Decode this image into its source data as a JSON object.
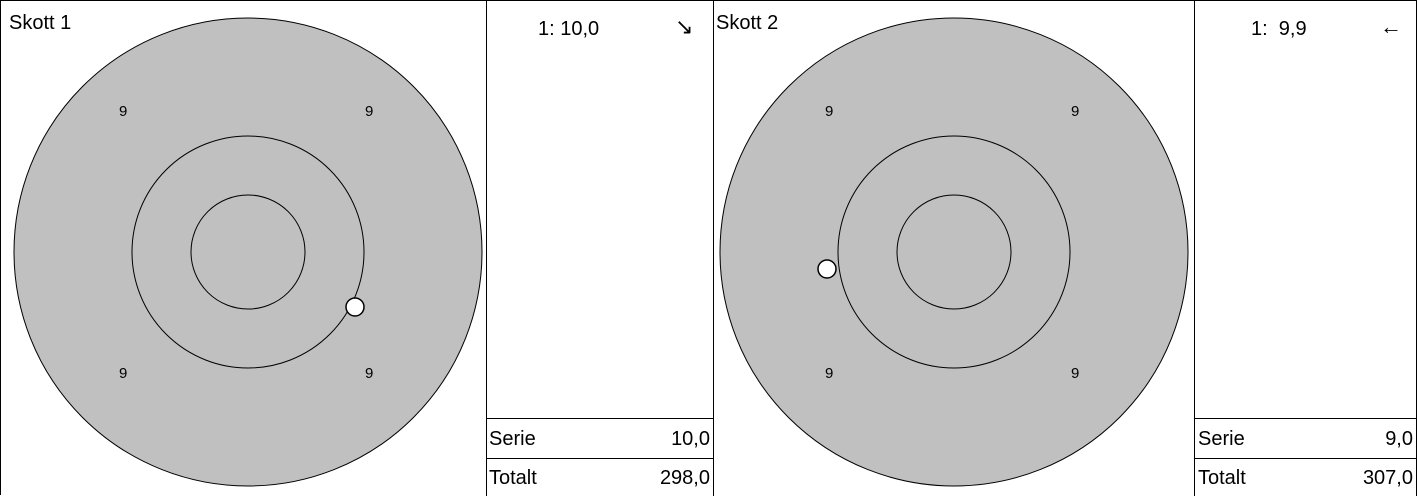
{
  "panels": [
    {
      "title": "Skott 1",
      "shot_line": "1: 10,0",
      "arrow": "↘",
      "ring_labels": [
        "9",
        "9",
        "9",
        "9"
      ],
      "serie_label": "Serie",
      "serie_value": "10,0",
      "total_label": "Totalt",
      "total_value": "298,0"
    },
    {
      "title": "Skott 2",
      "shot_line": "1:  9,9",
      "arrow": "←",
      "ring_labels": [
        "9",
        "9",
        "9",
        "9"
      ],
      "serie_label": "Serie",
      "serie_value": "9,0",
      "total_label": "Totalt",
      "total_value": "307,0"
    }
  ],
  "colors": {
    "target_fill": "#c0c0c0",
    "line": "#000000",
    "shot_fill": "#ffffff",
    "background": "#ffffff"
  }
}
